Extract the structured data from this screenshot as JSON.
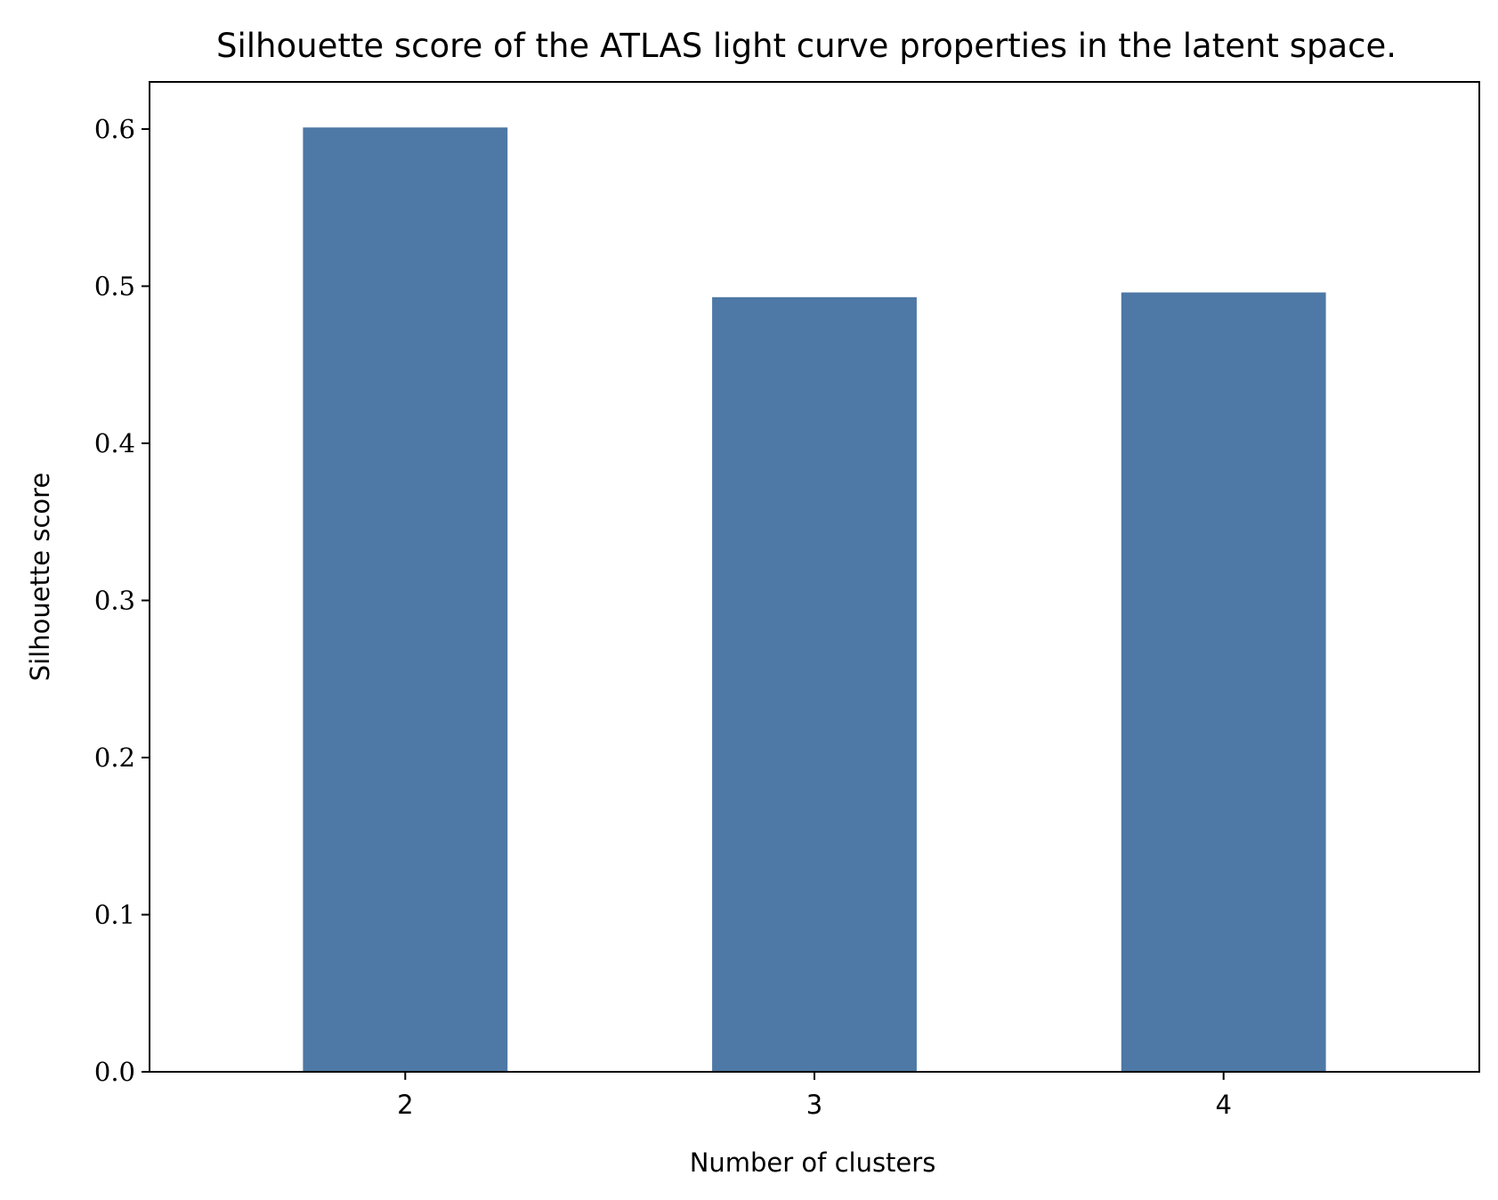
{
  "chart_data": {
    "type": "bar",
    "title": "Silhouette score of the ATLAS light curve properties in the latent space.",
    "xlabel": "Number of clusters",
    "ylabel": "Silhouette score",
    "categories": [
      "2",
      "3",
      "4"
    ],
    "values": [
      0.601,
      0.493,
      0.496
    ],
    "ylim": [
      0,
      0.63
    ],
    "yticks": [
      "0.0",
      "0.1",
      "0.2",
      "0.3",
      "0.4",
      "0.5",
      "0.6"
    ],
    "grid": false,
    "bar_color": "#4e78a5"
  }
}
